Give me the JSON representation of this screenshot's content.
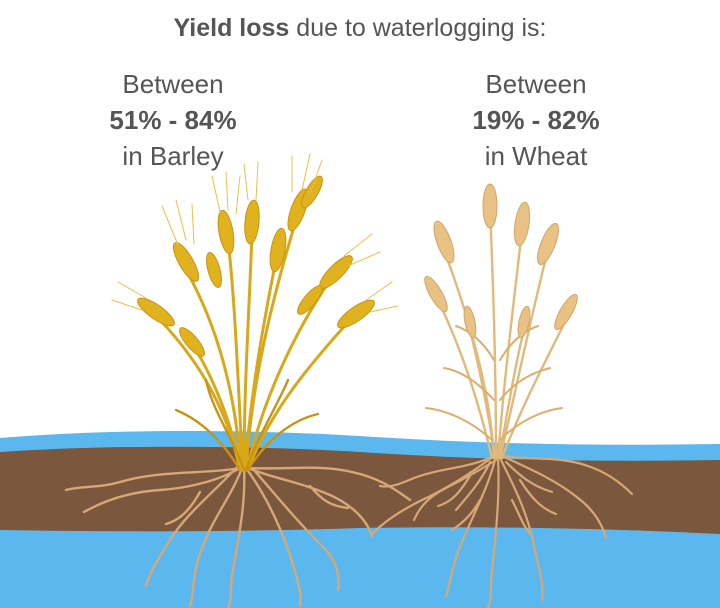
{
  "title": {
    "bold": "Yield loss",
    "rest": " due to waterlogging is:"
  },
  "barley": {
    "prefix": "Between",
    "range": "51% - 84%",
    "suffix": "in Barley"
  },
  "wheat": {
    "prefix": "Between",
    "range": "19% - 82%",
    "suffix": "in Wheat"
  },
  "colors": {
    "water": "#5bb8ee",
    "soil": "#7a573d",
    "root": "#d7a877",
    "barley_gold": "#e0b21e",
    "barley_dark": "#c99314",
    "wheat_pale": "#e8c184",
    "text": "#555555"
  },
  "icons": [
    "barley-plant-icon",
    "wheat-plant-icon"
  ]
}
